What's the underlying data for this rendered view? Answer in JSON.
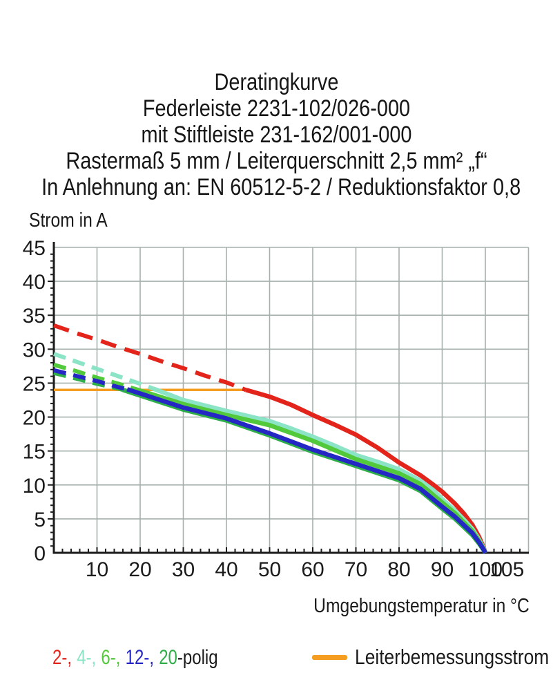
{
  "header": {
    "lines": [
      "Deratingkurve",
      "Federleiste 2231-102/026-000",
      "mit Stiftleiste 231-162/001-000",
      "Rastermaß 5 mm / Leiterquerschnitt 2,5 mm² „f“",
      "In Anlehnung an: EN 60512-5-2 / Reduktionsfaktor 0,8"
    ]
  },
  "legend": {
    "pole_items": [
      {
        "poles": 2,
        "label": "2-,",
        "color": "#e3241b"
      },
      {
        "poles": 4,
        "label": "4-,",
        "color": "#8ce4c6"
      },
      {
        "poles": 6,
        "label": "6-,",
        "color": "#52c93a"
      },
      {
        "poles": 12,
        "label": "12-,",
        "color": "#2427c4"
      },
      {
        "poles": 20,
        "label": "20",
        "color": "#2fae49"
      }
    ],
    "suffix": "-polig"
  },
  "chart_data": {
    "type": "line",
    "title": "Deratingkurve",
    "xlabel": "Umgebungstemperatur in °C",
    "ylabel": "Strom in A",
    "xlim": [
      0,
      110
    ],
    "ylim": [
      0,
      45
    ],
    "x_ticks": [
      10,
      20,
      30,
      40,
      50,
      60,
      70,
      80,
      90,
      100,
      105
    ],
    "y_ticks": [
      0,
      5,
      10,
      15,
      20,
      25,
      30,
      35,
      40,
      45
    ],
    "grid": true,
    "grid_color": "#a6b0ad",
    "axis_color": "#1b1b1b",
    "legend_position": "bottom",
    "rated_current_line": {
      "label": "Leiterbemessungsstrom",
      "y": 24,
      "x_start": 0,
      "x_end": 44.5,
      "color": "#f49d20"
    },
    "paint_order": [
      0,
      1,
      2,
      4,
      3
    ],
    "series": [
      {
        "name": "2-polig",
        "poles": 2,
        "color": "#e3241b",
        "dash_until": 44.5,
        "points": [
          [
            0,
            33.5
          ],
          [
            5,
            32.4
          ],
          [
            10,
            31.4
          ],
          [
            15,
            30.3
          ],
          [
            20,
            29.3
          ],
          [
            25,
            28.2
          ],
          [
            30,
            27.2
          ],
          [
            35,
            26.1
          ],
          [
            40,
            25.1
          ],
          [
            44.5,
            24.0
          ],
          [
            50,
            23.0
          ],
          [
            55,
            21.8
          ],
          [
            60,
            20.3
          ],
          [
            65,
            18.9
          ],
          [
            70,
            17.4
          ],
          [
            75,
            15.5
          ],
          [
            80,
            13.3
          ],
          [
            85,
            11.4
          ],
          [
            88,
            10.0
          ],
          [
            90,
            9.0
          ],
          [
            93,
            7.2
          ],
          [
            95,
            5.8
          ],
          [
            97,
            4.1
          ],
          [
            98.5,
            2.4
          ],
          [
            99.6,
            0.8
          ],
          [
            100,
            0
          ]
        ]
      },
      {
        "name": "4-polig",
        "poles": 4,
        "color": "#8ce4c6",
        "dash_until": 23,
        "points": [
          [
            0,
            29.3
          ],
          [
            5,
            28.2
          ],
          [
            10,
            27.1
          ],
          [
            15,
            26.0
          ],
          [
            20,
            24.9
          ],
          [
            23,
            24.2
          ],
          [
            30,
            22.5
          ],
          [
            40,
            20.9
          ],
          [
            50,
            19.4
          ],
          [
            55,
            18.3
          ],
          [
            60,
            17.1
          ],
          [
            65,
            15.8
          ],
          [
            70,
            14.4
          ],
          [
            75,
            13.4
          ],
          [
            80,
            12.3
          ],
          [
            85,
            10.6
          ],
          [
            88,
            9.2
          ],
          [
            90,
            7.9
          ],
          [
            93,
            6.2
          ],
          [
            95,
            4.9
          ],
          [
            97,
            3.5
          ],
          [
            98.5,
            2.0
          ],
          [
            99.6,
            0.7
          ],
          [
            100,
            0
          ]
        ]
      },
      {
        "name": "6-polig",
        "poles": 6,
        "color": "#52c93a",
        "dash_until": 18.5,
        "points": [
          [
            0,
            27.7
          ],
          [
            5,
            26.8
          ],
          [
            10,
            25.8
          ],
          [
            15,
            24.9
          ],
          [
            18.5,
            24.2
          ],
          [
            30,
            21.9
          ],
          [
            40,
            20.3
          ],
          [
            50,
            18.8
          ],
          [
            60,
            16.5
          ],
          [
            70,
            13.8
          ],
          [
            80,
            11.7
          ],
          [
            85,
            10.1
          ],
          [
            90,
            7.4
          ],
          [
            93,
            5.8
          ],
          [
            95,
            4.5
          ],
          [
            97,
            3.2
          ],
          [
            98.5,
            1.8
          ],
          [
            99.6,
            0.6
          ],
          [
            100,
            0
          ]
        ]
      },
      {
        "name": "12-polig",
        "poles": 12,
        "color": "#2427c4",
        "dash_until": 17,
        "points": [
          [
            0,
            26.9
          ],
          [
            5,
            26.1
          ],
          [
            10,
            25.3
          ],
          [
            15,
            24.4
          ],
          [
            17,
            24.1
          ],
          [
            30,
            21.4
          ],
          [
            40,
            19.8
          ],
          [
            50,
            17.6
          ],
          [
            60,
            15.2
          ],
          [
            70,
            13.1
          ],
          [
            80,
            11.0
          ],
          [
            85,
            9.4
          ],
          [
            90,
            6.8
          ],
          [
            93,
            5.3
          ],
          [
            95,
            4.1
          ],
          [
            97,
            2.9
          ],
          [
            98.5,
            1.6
          ],
          [
            99.6,
            0.5
          ],
          [
            100,
            0
          ]
        ]
      },
      {
        "name": "20-polig",
        "poles": 20,
        "color": "#2fae49",
        "dash_until": 16,
        "points": [
          [
            0,
            26.5
          ],
          [
            5,
            25.7
          ],
          [
            10,
            24.9
          ],
          [
            15,
            24.2
          ],
          [
            16,
            24.0
          ],
          [
            30,
            21.1
          ],
          [
            40,
            19.5
          ],
          [
            50,
            17.3
          ],
          [
            60,
            14.9
          ],
          [
            70,
            12.8
          ],
          [
            80,
            10.7
          ],
          [
            85,
            9.1
          ],
          [
            90,
            6.5
          ],
          [
            93,
            5.0
          ],
          [
            95,
            3.8
          ],
          [
            97,
            2.6
          ],
          [
            98.5,
            1.4
          ],
          [
            99.6,
            0.4
          ],
          [
            100,
            0
          ]
        ]
      }
    ]
  }
}
